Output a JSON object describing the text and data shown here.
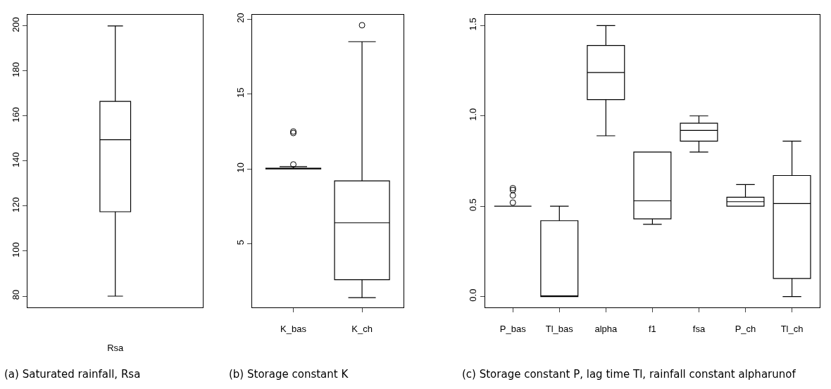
{
  "chart_data": [
    {
      "type": "box",
      "categories": [
        "Rsa"
      ],
      "ylim": [
        75,
        205
      ],
      "yticks": [
        80,
        100,
        120,
        140,
        160,
        180,
        200
      ],
      "boxes": [
        {
          "low": 80,
          "q1": 117.5,
          "median": 149.5,
          "q3": 166.5,
          "high": 200
        }
      ],
      "annotations": [
        "(a) Saturated rainfall, Rsa"
      ]
    },
    {
      "type": "box",
      "categories": [
        "K_bas",
        "K_ch"
      ],
      "ylim": [
        0.75,
        20.3
      ],
      "yticks": [
        5,
        10,
        15,
        20
      ],
      "boxes": [
        {
          "low": 10,
          "q1": 10,
          "median": 10,
          "q3": 10.05,
          "high": 10.15,
          "outliers": [
            10.3,
            12.4,
            12.5
          ]
        },
        {
          "low": 1.4,
          "q1": 2.6,
          "median": 6.4,
          "q3": 9.2,
          "high": 18.5,
          "outliers": [
            19.6
          ]
        }
      ],
      "annotations": [
        "(b) Storage constant K"
      ]
    },
    {
      "type": "box",
      "categories": [
        "P_bas",
        "Tl_bas",
        "alpha",
        "f1",
        "fsa",
        "P_ch",
        "Tl_ch"
      ],
      "ylim": [
        -0.06,
        1.56
      ],
      "yticks": [
        {
          "value": 0,
          "label": "0.0"
        },
        0.5,
        {
          "value": 1,
          "label": "1.0"
        },
        1.5
      ],
      "boxes": [
        {
          "low": 0.5,
          "q1": 0.5,
          "median": 0.5,
          "q3": 0.5,
          "high": 0.5,
          "outliers": [
            0.52,
            0.56,
            0.59,
            0.6
          ]
        },
        {
          "low": 0,
          "q1": 0,
          "median": 0,
          "q3": 0.42,
          "high": 0.5
        },
        {
          "low": 0.89,
          "q1": 1.09,
          "median": 1.24,
          "q3": 1.39,
          "high": 1.5
        },
        {
          "low": 0.4,
          "q1": 0.43,
          "median": 0.53,
          "q3": 0.8,
          "high": 0.8
        },
        {
          "low": 0.8,
          "q1": 0.86,
          "median": 0.92,
          "q3": 0.96,
          "high": 1.0
        },
        {
          "low": 0.5,
          "q1": 0.5,
          "median": 0.525,
          "q3": 0.55,
          "high": 0.62
        },
        {
          "low": 0,
          "q1": 0.1,
          "median": 0.515,
          "q3": 0.67,
          "high": 0.86
        }
      ],
      "annotations": [
        "(c) Storage constant P, lag time Tl, rainfall constant alpharunof"
      ]
    }
  ]
}
